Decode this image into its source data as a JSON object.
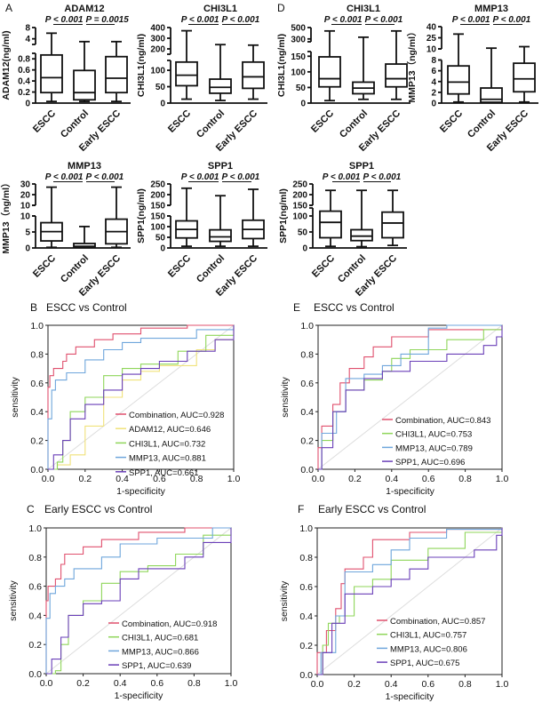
{
  "panel_labels": [
    "A",
    "D",
    "B",
    "E",
    "C",
    "F"
  ],
  "colors": {
    "Combination": "#e0506e",
    "ADAM12": "#f0e27a",
    "CHI3L1": "#8fd65a",
    "MMP13": "#6fa6dc",
    "SPP1": "#6a3fb8",
    "diagonal": "#dddddd"
  },
  "chart_data": [
    {
      "type": "boxplot",
      "title": "ADAM12",
      "ylabel": "ADAM12(ng/ml)",
      "categories": [
        "ESCC",
        "Control",
        "Early ESCC"
      ],
      "pvalues": [
        "P < 0.001",
        "P = 0.0015"
      ],
      "broken_axis": true,
      "lower_range": [
        0,
        0.9
      ],
      "lower_ticks": [
        0,
        0.2,
        0.4,
        0.6,
        0.8
      ],
      "upper_range": [
        2,
        8
      ],
      "upper_ticks": [
        4,
        8
      ],
      "boxes": [
        [
          0.03,
          0.19,
          0.46,
          0.87,
          6
        ],
        [
          0.03,
          0.06,
          0.19,
          0.59,
          3
        ],
        [
          0.03,
          0.19,
          0.45,
          0.84,
          3
        ]
      ]
    },
    {
      "type": "boxplot",
      "title": "CHI3L1",
      "ylabel": "CHI3L1(ng/ml)",
      "categories": [
        "ESCC",
        "Control",
        "Early ESCC"
      ],
      "pvalues": [
        "P < 0.001",
        "P < 0.001"
      ],
      "broken_axis": true,
      "lower_range": [
        0,
        130
      ],
      "lower_ticks": [
        0,
        50,
        100
      ],
      "upper_range": [
        150,
        400
      ],
      "upper_ticks": [
        200,
        300,
        400
      ],
      "boxes": [
        [
          12,
          53,
          85,
          125,
          370
        ],
        [
          8,
          30,
          48,
          73,
          240
        ],
        [
          12,
          45,
          80,
          125,
          235
        ]
      ]
    },
    {
      "type": "boxplot",
      "title": "CHI3L1",
      "ylabel": "CHI3L1(ng/ml)",
      "categories": [
        "ESCC",
        "Control",
        "Early ESCC"
      ],
      "pvalues": [
        "P < 0.001",
        "P < 0.001"
      ],
      "broken_axis": true,
      "lower_range": [
        0,
        165
      ],
      "lower_ticks": [
        0,
        50,
        100,
        150
      ],
      "upper_range": [
        250,
        500
      ],
      "upper_ticks": [
        300,
        500
      ],
      "boxes": [
        [
          8,
          52,
          78,
          148,
          440
        ],
        [
          12,
          30,
          48,
          67,
          330
        ],
        [
          12,
          52,
          78,
          125,
          440
        ]
      ]
    },
    {
      "type": "boxplot",
      "title": "MMP13",
      "ylabel": "MMP13（ng/ml）",
      "categories": [
        "ESCC",
        "Control",
        "Early ESCC"
      ],
      "pvalues": [
        "P < 0.001",
        "P < 0.001"
      ],
      "broken_axis": true,
      "lower_range": [
        0,
        8
      ],
      "lower_ticks": [
        0,
        2,
        4,
        6,
        8
      ],
      "upper_range": [
        10,
        40
      ],
      "upper_ticks": [
        10,
        25,
        40
      ],
      "boxes": [
        [
          0.2,
          1.7,
          3.9,
          6.9,
          30
        ],
        [
          0.1,
          0.15,
          0.7,
          2.8,
          11
        ],
        [
          0.2,
          2.1,
          4.5,
          7.4,
          13
        ]
      ]
    },
    {
      "type": "boxplot",
      "title": "MMP13",
      "ylabel": "MMP13（ng/ml）",
      "categories": [
        "ESCC",
        "Control",
        "Early ESCC"
      ],
      "pvalues": [
        "P < 0.001",
        "P < 0.001"
      ],
      "broken_axis": true,
      "lower_range": [
        0,
        10
      ],
      "lower_ticks": [
        0,
        5,
        10
      ],
      "upper_range": [
        10,
        30
      ],
      "upper_ticks": [
        10,
        20,
        30
      ],
      "boxes": [
        [
          0.2,
          2.2,
          5.1,
          7.9,
          27
        ],
        [
          0.1,
          0.2,
          0.5,
          1.4,
          6.7
        ],
        [
          0.2,
          1.3,
          5.1,
          9,
          27
        ]
      ]
    },
    {
      "type": "boxplot",
      "title": "SPP1",
      "ylabel": "SPP1(ng/ml)",
      "categories": [
        "ESCC",
        "Control",
        "Early ESCC"
      ],
      "pvalues": [
        "P < 0.001",
        "P < 0.001"
      ],
      "broken_axis": true,
      "lower_range": [
        0,
        150
      ],
      "lower_ticks": [
        0,
        50,
        100,
        150
      ],
      "upper_range": [
        150,
        250
      ],
      "upper_ticks": [
        150,
        200,
        250
      ],
      "boxes": [
        [
          8,
          47,
          87,
          127,
          230
        ],
        [
          8,
          31,
          52,
          85,
          195
        ],
        [
          8,
          44,
          87,
          130,
          225
        ]
      ]
    },
    {
      "type": "boxplot",
      "title": "SPP1",
      "ylabel": "SPP1(ng/ml)",
      "categories": [
        "ESCC",
        "Control",
        "Early ESCC"
      ],
      "pvalues": [
        "P < 0.001",
        "P < 0.001"
      ],
      "broken_axis": true,
      "lower_range": [
        0,
        125
      ],
      "lower_ticks": [
        0,
        50,
        100
      ],
      "upper_range": [
        150,
        250
      ],
      "upper_ticks": [
        150,
        200,
        250
      ],
      "boxes": [
        [
          5,
          32,
          80,
          115,
          220
        ],
        [
          4,
          23,
          37,
          57,
          220
        ],
        [
          8,
          32,
          78,
          112,
          220
        ]
      ]
    },
    {
      "type": "line",
      "title": "ESCC vs Control",
      "xlabel": "1-specificity",
      "ylabel": "sensitivity",
      "xlim": [
        0,
        1
      ],
      "ylim": [
        0,
        1
      ],
      "xticks": [
        "0.0",
        "0.2",
        "0.4",
        "0.6",
        "0.8",
        "1.0"
      ],
      "yticks": [
        "0.0",
        "0.2",
        "0.4",
        "0.6",
        "0.8",
        "1.0"
      ],
      "legend_position": "bottom-right",
      "series": [
        {
          "name": "Combination",
          "legend": "Combination, AUC=0.928",
          "x": [
            0,
            0,
            0.01,
            0.03,
            0.08,
            0.1,
            0.15,
            0.25,
            0.35,
            0.5,
            0.75,
            1
          ],
          "y": [
            0,
            0.57,
            0.65,
            0.7,
            0.75,
            0.8,
            0.85,
            0.9,
            0.94,
            0.98,
            1,
            1
          ]
        },
        {
          "name": "ADAM12",
          "legend": "ADAM12, AUC=0.646",
          "x": [
            0,
            0.05,
            0.12,
            0.2,
            0.3,
            0.4,
            0.5,
            0.6,
            0.8,
            0.9,
            1
          ],
          "y": [
            0,
            0.03,
            0.1,
            0.3,
            0.5,
            0.62,
            0.68,
            0.72,
            0.83,
            0.9,
            1
          ]
        },
        {
          "name": "CHI3L1",
          "legend": "CHI3L1, AUC=0.732",
          "x": [
            0,
            0.05,
            0.08,
            0.12,
            0.2,
            0.3,
            0.4,
            0.5,
            0.7,
            0.85,
            1
          ],
          "y": [
            0,
            0.05,
            0.2,
            0.4,
            0.5,
            0.65,
            0.7,
            0.73,
            0.82,
            0.93,
            1
          ]
        },
        {
          "name": "MMP13",
          "legend": "MMP13, AUC=0.881",
          "x": [
            0,
            0,
            0.02,
            0.04,
            0.1,
            0.2,
            0.3,
            0.4,
            0.5,
            0.8,
            1
          ],
          "y": [
            0,
            0.35,
            0.55,
            0.62,
            0.67,
            0.76,
            0.83,
            0.88,
            0.91,
            0.97,
            1
          ]
        },
        {
          "name": "SPP1",
          "legend": "SPP1, AUC=0.661",
          "x": [
            0,
            0.03,
            0.08,
            0.12,
            0.2,
            0.3,
            0.4,
            0.5,
            0.6,
            0.75,
            0.9,
            1
          ],
          "y": [
            0,
            0.1,
            0.2,
            0.35,
            0.45,
            0.55,
            0.66,
            0.7,
            0.75,
            0.82,
            0.9,
            1
          ]
        }
      ]
    },
    {
      "type": "line",
      "title": "ESCC vs Control",
      "xlabel": "1-specificity",
      "ylabel": "sensitivity",
      "xlim": [
        0,
        1
      ],
      "ylim": [
        0,
        1
      ],
      "xticks": [
        "0.0",
        "0.2",
        "0.4",
        "0.6",
        "0.8",
        "1.0"
      ],
      "yticks": [
        "0.0",
        "0.2",
        "0.4",
        "0.6",
        "0.8",
        "1.0"
      ],
      "legend_position": "bottom-right",
      "series": [
        {
          "name": "Combination",
          "legend": "Combination, AUC=0.843",
          "x": [
            0,
            0,
            0.02,
            0.08,
            0.12,
            0.17,
            0.25,
            0.3,
            0.4,
            0.6,
            1
          ],
          "y": [
            0,
            0.15,
            0.3,
            0.45,
            0.6,
            0.7,
            0.78,
            0.85,
            0.92,
            0.97,
            1
          ]
        },
        {
          "name": "CHI3L1",
          "legend": "CHI3L1, AUC=0.753",
          "x": [
            0,
            0.02,
            0.08,
            0.15,
            0.25,
            0.35,
            0.4,
            0.5,
            0.7,
            0.9,
            1
          ],
          "y": [
            0,
            0.2,
            0.4,
            0.55,
            0.62,
            0.68,
            0.77,
            0.83,
            0.9,
            0.97,
            1
          ]
        },
        {
          "name": "MMP13",
          "legend": "MMP13, AUC=0.789",
          "x": [
            0,
            0.02,
            0.1,
            0.15,
            0.25,
            0.35,
            0.45,
            0.6,
            0.7,
            1
          ],
          "y": [
            0,
            0.25,
            0.4,
            0.63,
            0.66,
            0.72,
            0.8,
            0.98,
            1,
            1
          ]
        },
        {
          "name": "SPP1",
          "legend": "SPP1, AUC=0.696",
          "x": [
            0,
            0.02,
            0.08,
            0.15,
            0.25,
            0.35,
            0.5,
            0.7,
            0.9,
            0.97,
            1
          ],
          "y": [
            0,
            0.15,
            0.4,
            0.55,
            0.63,
            0.68,
            0.75,
            0.8,
            0.86,
            0.92,
            1
          ]
        }
      ]
    },
    {
      "type": "line",
      "title": "Early ESCC vs Control",
      "xlabel": "1-specificity",
      "ylabel": "sensitivity",
      "xlim": [
        0,
        1
      ],
      "ylim": [
        0,
        1
      ],
      "xticks": [
        "0.0",
        "0.2",
        "0.4",
        "0.6",
        "0.8",
        "1.0"
      ],
      "yticks": [
        "0.0",
        "0.2",
        "0.4",
        "0.6",
        "0.8",
        "1.0"
      ],
      "legend_position": "bottom-right",
      "series": [
        {
          "name": "Combination",
          "legend": "Combination, AUC=0.918",
          "x": [
            0,
            0,
            0.01,
            0.05,
            0.08,
            0.1,
            0.2,
            0.3,
            0.5,
            0.75,
            1
          ],
          "y": [
            0,
            0.5,
            0.6,
            0.65,
            0.75,
            0.82,
            0.87,
            0.92,
            0.97,
            1,
            1
          ]
        },
        {
          "name": "CHI3L1",
          "legend": "CHI3L1, AUC=0.681",
          "x": [
            0,
            0.05,
            0.08,
            0.12,
            0.2,
            0.3,
            0.4,
            0.55,
            0.7,
            0.85,
            1
          ],
          "y": [
            0,
            0.02,
            0.2,
            0.4,
            0.5,
            0.62,
            0.7,
            0.74,
            0.82,
            0.95,
            1
          ]
        },
        {
          "name": "MMP13",
          "legend": "MMP13, AUC=0.866",
          "x": [
            0,
            0,
            0.02,
            0.05,
            0.1,
            0.15,
            0.3,
            0.4,
            0.6,
            0.9,
            1
          ],
          "y": [
            0,
            0.38,
            0.55,
            0.6,
            0.65,
            0.72,
            0.8,
            0.89,
            0.93,
            1,
            1
          ]
        },
        {
          "name": "SPP1",
          "legend": "SPP1, AUC=0.639",
          "x": [
            0,
            0.03,
            0.08,
            0.12,
            0.2,
            0.3,
            0.4,
            0.5,
            0.75,
            0.85,
            1
          ],
          "y": [
            0,
            0.1,
            0.25,
            0.4,
            0.48,
            0.5,
            0.65,
            0.72,
            0.8,
            0.9,
            1
          ]
        }
      ]
    },
    {
      "type": "line",
      "title": "Early ESCC vs Control",
      "xlabel": "1-specificity",
      "ylabel": "sensitivity",
      "xlim": [
        0,
        1
      ],
      "ylim": [
        0,
        1
      ],
      "xticks": [
        "0.0",
        "0.2",
        "0.4",
        "0.6",
        "0.8",
        "1.0"
      ],
      "yticks": [
        "0.0",
        "0.2",
        "0.4",
        "0.6",
        "0.8",
        "1.0"
      ],
      "legend_position": "bottom-right",
      "series": [
        {
          "name": "Combination",
          "legend": "Combination, AUC=0.857",
          "x": [
            0,
            0,
            0.05,
            0.1,
            0.13,
            0.15,
            0.25,
            0.3,
            0.5,
            0.7,
            1
          ],
          "y": [
            0,
            0.15,
            0.3,
            0.45,
            0.62,
            0.72,
            0.8,
            0.92,
            0.97,
            0.99,
            1
          ]
        },
        {
          "name": "CHI3L1",
          "legend": "CHI3L1, AUC=0.757",
          "x": [
            0,
            0.03,
            0.06,
            0.12,
            0.2,
            0.3,
            0.4,
            0.6,
            0.8,
            1
          ],
          "y": [
            0,
            0.2,
            0.35,
            0.4,
            0.6,
            0.65,
            0.78,
            0.86,
            0.97,
            1
          ]
        },
        {
          "name": "MMP13",
          "legend": "MMP13, AUC=0.806",
          "x": [
            0,
            0.02,
            0.1,
            0.15,
            0.3,
            0.4,
            0.5,
            0.7,
            1
          ],
          "y": [
            0,
            0.15,
            0.4,
            0.7,
            0.75,
            0.85,
            0.93,
            0.99,
            1
          ]
        },
        {
          "name": "SPP1",
          "legend": "SPP1, AUC=0.675",
          "x": [
            0,
            0.03,
            0.08,
            0.15,
            0.3,
            0.4,
            0.5,
            0.6,
            0.85,
            0.97,
            1
          ],
          "y": [
            0,
            0.15,
            0.35,
            0.55,
            0.6,
            0.65,
            0.72,
            0.8,
            0.85,
            0.95,
            1
          ]
        }
      ]
    }
  ]
}
